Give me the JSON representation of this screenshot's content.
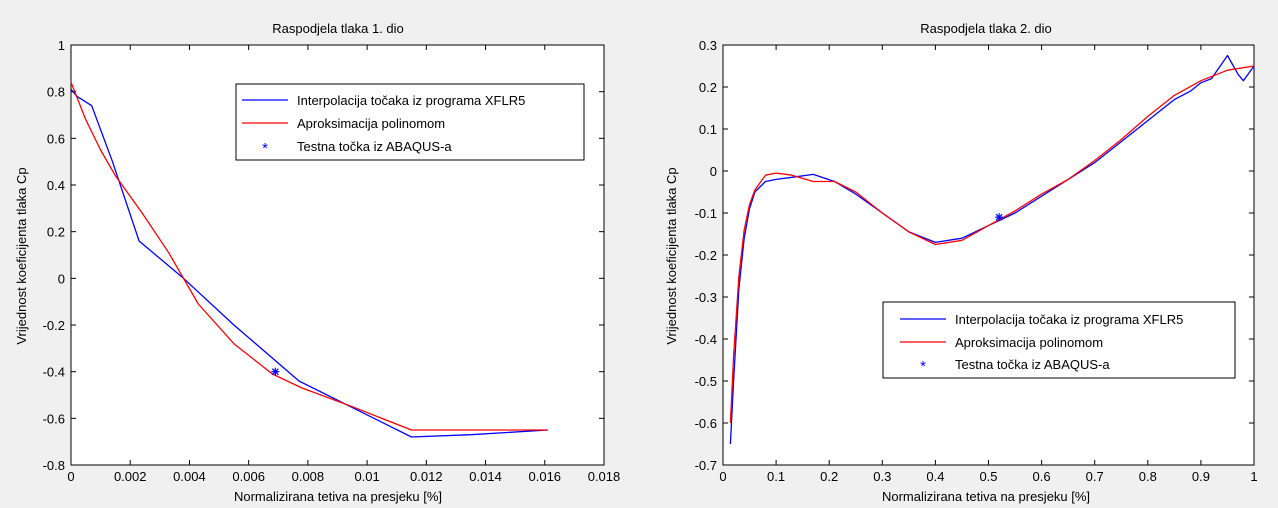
{
  "background": "#f0f0f0",
  "chart_data": [
    {
      "type": "line",
      "title": "Raspodjela tlaka 1. dio",
      "xlabel": "Normalizirana tetiva  na presjeku [%]",
      "ylabel": "Vrijednost koeficijenta tlaka Cp",
      "xlim": [
        0,
        0.018
      ],
      "ylim": [
        -0.8,
        1
      ],
      "xticks": [
        0,
        0.002,
        0.004,
        0.006,
        0.008,
        0.01,
        0.012,
        0.014,
        0.016,
        0.018
      ],
      "xtick_labels": [
        "0",
        "0.002",
        "0.004",
        "0.006",
        "0.008",
        "0.01",
        "0.012",
        "0.014",
        "0.016",
        "0.018"
      ],
      "yticks": [
        -0.8,
        -0.6,
        -0.4,
        -0.2,
        0,
        0.2,
        0.4,
        0.6,
        0.8,
        1
      ],
      "ytick_labels": [
        "-0.8",
        "-0.6",
        "-0.4",
        "-0.2",
        "0",
        "0.2",
        "0.4",
        "0.6",
        "0.8",
        "1"
      ],
      "grid": false,
      "legend_position": "top-right",
      "series": [
        {
          "name": "Interpolacija točaka iz programa XFLR5",
          "color": "#0000ff",
          "x": [
            0,
            0.0002,
            0.0007,
            0.0014,
            0.0023,
            0.0038,
            0.0055,
            0.0077,
            0.0115,
            0.0135,
            0.0161
          ],
          "y": [
            0.81,
            0.78,
            0.74,
            0.5,
            0.16,
            0.0,
            -0.2,
            -0.44,
            -0.68,
            -0.67,
            -0.65
          ]
        },
        {
          "name": "Aproksimacija polinomom",
          "color": "#ff0000",
          "x": [
            0,
            0.0005,
            0.001,
            0.0015,
            0.0024,
            0.0033,
            0.0043,
            0.0055,
            0.0068,
            0.0078,
            0.0095,
            0.0115,
            0.0135,
            0.0161
          ],
          "y": [
            0.84,
            0.68,
            0.55,
            0.44,
            0.28,
            0.11,
            -0.11,
            -0.28,
            -0.41,
            -0.47,
            -0.55,
            -0.65,
            -0.65,
            -0.65
          ]
        },
        {
          "name": "Testna točka iz ABAQUS-a",
          "color": "#0000ff",
          "marker": "asterisk",
          "x": [
            0.0069
          ],
          "y": [
            -0.4
          ]
        }
      ]
    },
    {
      "type": "line",
      "title": "Raspodjela tlaka 2. dio",
      "xlabel": "Normalizirana tetiva  na presjeku [%]",
      "ylabel": "Vrijednost koeficijenta tlaka Cp",
      "xlim": [
        0,
        1
      ],
      "ylim": [
        -0.7,
        0.3
      ],
      "xticks": [
        0,
        0.1,
        0.2,
        0.3,
        0.4,
        0.5,
        0.6,
        0.7,
        0.8,
        0.9,
        1
      ],
      "xtick_labels": [
        "0",
        "0.1",
        "0.2",
        "0.3",
        "0.4",
        "0.5",
        "0.6",
        "0.7",
        "0.8",
        "0.9",
        "1"
      ],
      "yticks": [
        -0.7,
        -0.6,
        -0.5,
        -0.4,
        -0.3,
        -0.2,
        -0.1,
        0,
        0.1,
        0.2,
        0.3
      ],
      "ytick_labels": [
        "-0.7",
        "-0.6",
        "-0.5",
        "-0.4",
        "-0.3",
        "-0.2",
        "-0.1",
        "0",
        "0.1",
        "0.2",
        "0.3"
      ],
      "grid": false,
      "legend_position": "bottom-right",
      "series": [
        {
          "name": "Interpolacija točaka iz programa XFLR5",
          "color": "#0000ff",
          "x": [
            0.014,
            0.02,
            0.03,
            0.04,
            0.05,
            0.06,
            0.08,
            0.1,
            0.13,
            0.17,
            0.21,
            0.25,
            0.3,
            0.35,
            0.4,
            0.45,
            0.5,
            0.55,
            0.6,
            0.65,
            0.7,
            0.75,
            0.8,
            0.85,
            0.88,
            0.9,
            0.92,
            0.95,
            0.97,
            0.98,
            1.0
          ],
          "y": [
            -0.65,
            -0.5,
            -0.28,
            -0.16,
            -0.09,
            -0.05,
            -0.025,
            -0.02,
            -0.015,
            -0.008,
            -0.025,
            -0.055,
            -0.1,
            -0.145,
            -0.17,
            -0.16,
            -0.13,
            -0.1,
            -0.06,
            -0.02,
            0.02,
            0.07,
            0.12,
            0.17,
            0.19,
            0.21,
            0.22,
            0.275,
            0.23,
            0.215,
            0.25
          ]
        },
        {
          "name": "Aproksimacija polinomom",
          "color": "#ff0000",
          "x": [
            0.014,
            0.02,
            0.03,
            0.04,
            0.05,
            0.06,
            0.08,
            0.1,
            0.13,
            0.17,
            0.21,
            0.25,
            0.3,
            0.35,
            0.4,
            0.45,
            0.5,
            0.55,
            0.6,
            0.65,
            0.7,
            0.75,
            0.8,
            0.85,
            0.9,
            0.95,
            1.0
          ],
          "y": [
            -0.6,
            -0.44,
            -0.25,
            -0.14,
            -0.08,
            -0.045,
            -0.01,
            -0.005,
            -0.01,
            -0.025,
            -0.025,
            -0.05,
            -0.1,
            -0.145,
            -0.175,
            -0.165,
            -0.13,
            -0.095,
            -0.055,
            -0.02,
            0.025,
            0.075,
            0.13,
            0.18,
            0.215,
            0.24,
            0.25
          ]
        },
        {
          "name": "Testna točka iz ABAQUS-a",
          "color": "#0000ff",
          "marker": "asterisk",
          "x": [
            0.52
          ],
          "y": [
            -0.11
          ]
        }
      ]
    }
  ]
}
